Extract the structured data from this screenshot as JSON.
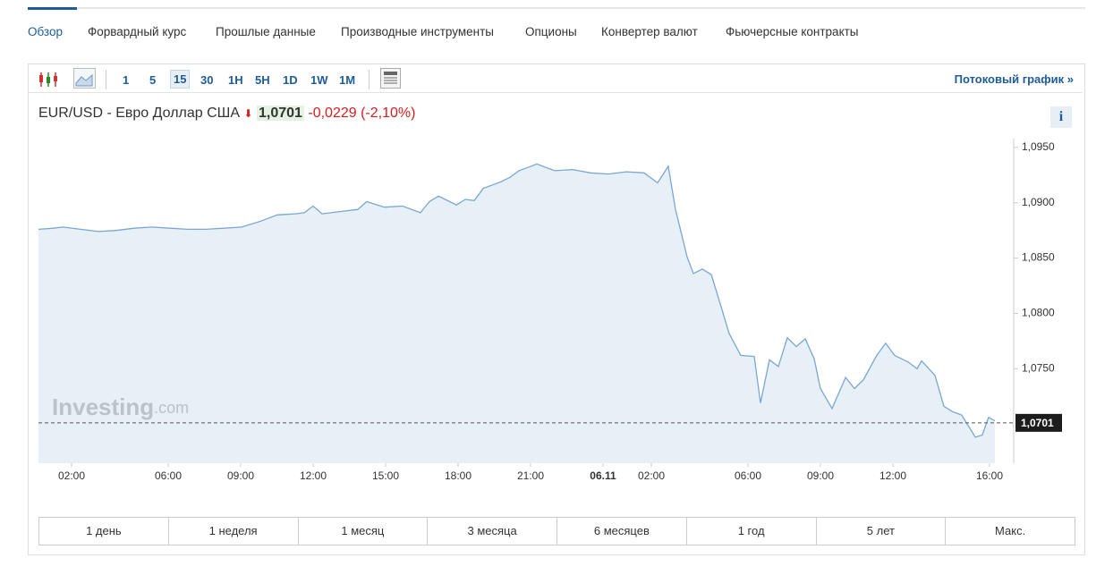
{
  "tabs": {
    "items": [
      "Обзор",
      "Форвардный курс",
      "Прошлые данные",
      "Производные инструменты",
      "Опционы",
      "Конвертер валют",
      "Фьючерсные контракты"
    ],
    "active": 0
  },
  "toolbar": {
    "intervals": [
      "1",
      "5",
      "15",
      "30",
      "1H",
      "5H",
      "1D",
      "1W",
      "1M"
    ],
    "active": 2,
    "stream": "Потоковый график »"
  },
  "header": {
    "pair": "EUR/USD - Евро Доллар США",
    "price": "1,0701",
    "change": "-0,0229",
    "change_pct": "(-2,10%)",
    "info": "i"
  },
  "chart_data": {
    "type": "line",
    "x": [
      0.63,
      1.26,
      1.63,
      2.37,
      3.11,
      3.85,
      4.59,
      5.33,
      6.07,
      6.81,
      7.56,
      8.3,
      9.04,
      9.78,
      10.52,
      11.26,
      11.63,
      12.0,
      12.37,
      13.11,
      13.85,
      14.22,
      14.96,
      15.7,
      16.44,
      16.81,
      17.19,
      17.93,
      18.3,
      18.67,
      19.04,
      19.78,
      20.15,
      20.52,
      20.89,
      21.26,
      22.0,
      22.74,
      23.48,
      24.22,
      24.96,
      25.7,
      26.26,
      26.7,
      27.0,
      27.48,
      27.74,
      28.11,
      28.48,
      28.85,
      29.22,
      29.7,
      30.26,
      30.52,
      30.89,
      31.26,
      31.63,
      32.0,
      32.37,
      32.74,
      33.0,
      33.48,
      34.04,
      34.41,
      34.78,
      35.33,
      35.7,
      36.07,
      36.63,
      37.0,
      37.19,
      37.74,
      38.11,
      38.48,
      38.85,
      39.41,
      39.7,
      39.96,
      40.22
    ],
    "series": [
      {
        "color": "#7aa7d2",
        "values": [
          1.0876,
          1.0877,
          1.0878,
          1.0876,
          1.0874,
          1.0875,
          1.0877,
          1.0878,
          1.0877,
          1.0876,
          1.0876,
          1.0877,
          1.0878,
          1.0883,
          1.0889,
          1.089,
          1.0891,
          1.0897,
          1.089,
          1.0892,
          1.0894,
          1.0901,
          1.0896,
          1.0897,
          1.0891,
          1.0901,
          1.0906,
          1.0898,
          1.0903,
          1.0902,
          1.0913,
          1.0919,
          1.0923,
          1.0929,
          1.0932,
          1.0935,
          1.0929,
          1.093,
          1.0927,
          1.0926,
          1.0928,
          1.0927,
          1.0918,
          1.0933,
          1.0894,
          1.0851,
          1.0836,
          1.084,
          1.0835,
          1.0809,
          1.0782,
          1.0762,
          1.0761,
          1.0719,
          1.0758,
          1.0752,
          1.0778,
          1.077,
          1.0777,
          1.0759,
          1.0732,
          1.0714,
          1.0742,
          1.0732,
          1.074,
          1.0762,
          1.0773,
          1.0762,
          1.0756,
          1.075,
          1.0757,
          1.0744,
          1.0716,
          1.0711,
          1.0708,
          1.0688,
          1.069,
          1.0706,
          1.0703
        ]
      }
    ],
    "xlim": [
      0.63,
      41
    ],
    "ylim": [
      1.06645,
      1.0958
    ],
    "xticks": [
      {
        "value": 2,
        "label": "02:00"
      },
      {
        "value": 6,
        "label": "06:00"
      },
      {
        "value": 9,
        "label": "09:00"
      },
      {
        "value": 12,
        "label": "12:00"
      },
      {
        "value": 15,
        "label": "15:00"
      },
      {
        "value": 18,
        "label": "18:00"
      },
      {
        "value": 21,
        "label": "21:00"
      },
      {
        "value": 24,
        "label": "06.11"
      },
      {
        "value": 26,
        "label": "02:00"
      },
      {
        "value": 30,
        "label": "06:00"
      },
      {
        "value": 33,
        "label": "09:00"
      },
      {
        "value": 36,
        "label": "12:00"
      },
      {
        "value": 40,
        "label": "16:00"
      }
    ],
    "yticks": [
      {
        "value": 1.095,
        "label": "1,0950"
      },
      {
        "value": 1.09,
        "label": "1,0900"
      },
      {
        "value": 1.085,
        "label": "1,0850"
      },
      {
        "value": 1.08,
        "label": "1,0800"
      },
      {
        "value": 1.075,
        "label": "1,0750"
      }
    ],
    "current": {
      "value": 1.0701,
      "label": "1,0701"
    },
    "watermark": {
      "main": "Investing",
      "suffix": ".com"
    }
  },
  "ranges": {
    "items": [
      "1 день",
      "1 неделя",
      "1 месяц",
      "3 месяца",
      "6 месяцев",
      "1 год",
      "5 лет",
      "Макс."
    ]
  }
}
